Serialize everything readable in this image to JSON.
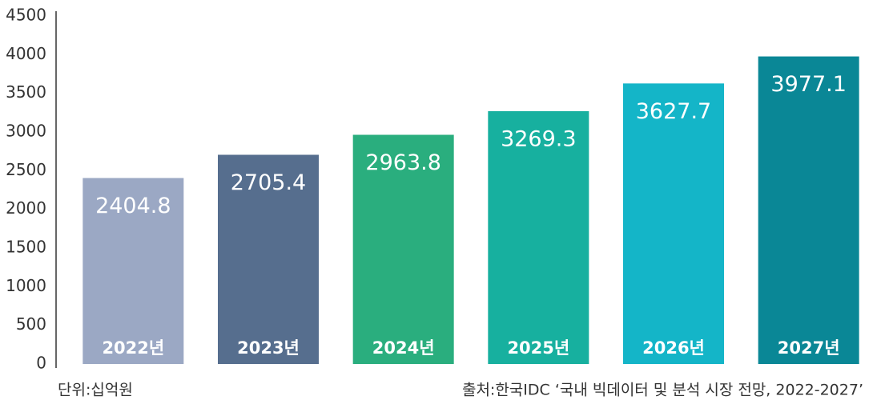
{
  "chart_data": {
    "type": "bar",
    "categories": [
      "2022년",
      "2023년",
      "2024년",
      "2025년",
      "2026년",
      "2027년"
    ],
    "values": [
      2404.8,
      2705.4,
      2963.8,
      3269.3,
      3627.7,
      3977.1
    ],
    "colors": [
      "#9ba8c4",
      "#566e8e",
      "#2aae7e",
      "#17b09f",
      "#14b5c8",
      "#0a8796"
    ],
    "ylim": [
      0,
      4500
    ],
    "yticks": [
      0,
      500,
      1000,
      1500,
      2000,
      2500,
      3000,
      3500,
      4000,
      4500
    ],
    "grid": false,
    "unit_note": "단위:십억원",
    "source_note": "출처:한국IDC ‘국내 빅데이터 및 분석 시장 전망, 2022-2027’"
  }
}
